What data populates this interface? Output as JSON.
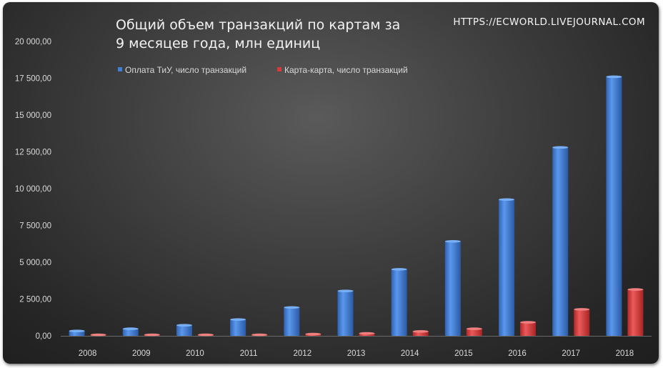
{
  "chart_data": {
    "type": "bar",
    "title": "Общий объем транзакций  по картам за\n9 месяцев  года,  млн единиц",
    "watermark": "HTTPS://ECWORLD.LIVEJOURNAL.COM",
    "categories": [
      "2008",
      "2009",
      "2010",
      "2011",
      "2012",
      "2013",
      "2014",
      "2015",
      "2016",
      "2017",
      "2018"
    ],
    "series": [
      {
        "name": "Оплата ТиУ, число транзакций",
        "color": "#3f7fd6",
        "values": [
          330,
          480,
          720,
          1110,
          1930,
          3050,
          4520,
          6420,
          9260,
          12800,
          17600
        ]
      },
      {
        "name": "Карта-карта, число транзакций",
        "color": "#d63a3a",
        "values": [
          5,
          10,
          20,
          40,
          120,
          170,
          300,
          480,
          920,
          1800,
          3150
        ]
      }
    ],
    "y_ticks": [
      "0,00",
      "2 500,00",
      "5 000,00",
      "7 500,00",
      "10 000,00",
      "12 500,00",
      "15 000,00",
      "17 500,00",
      "20 000,00"
    ],
    "ylim": [
      0,
      20000
    ],
    "legend_position": "top",
    "grid": false
  }
}
